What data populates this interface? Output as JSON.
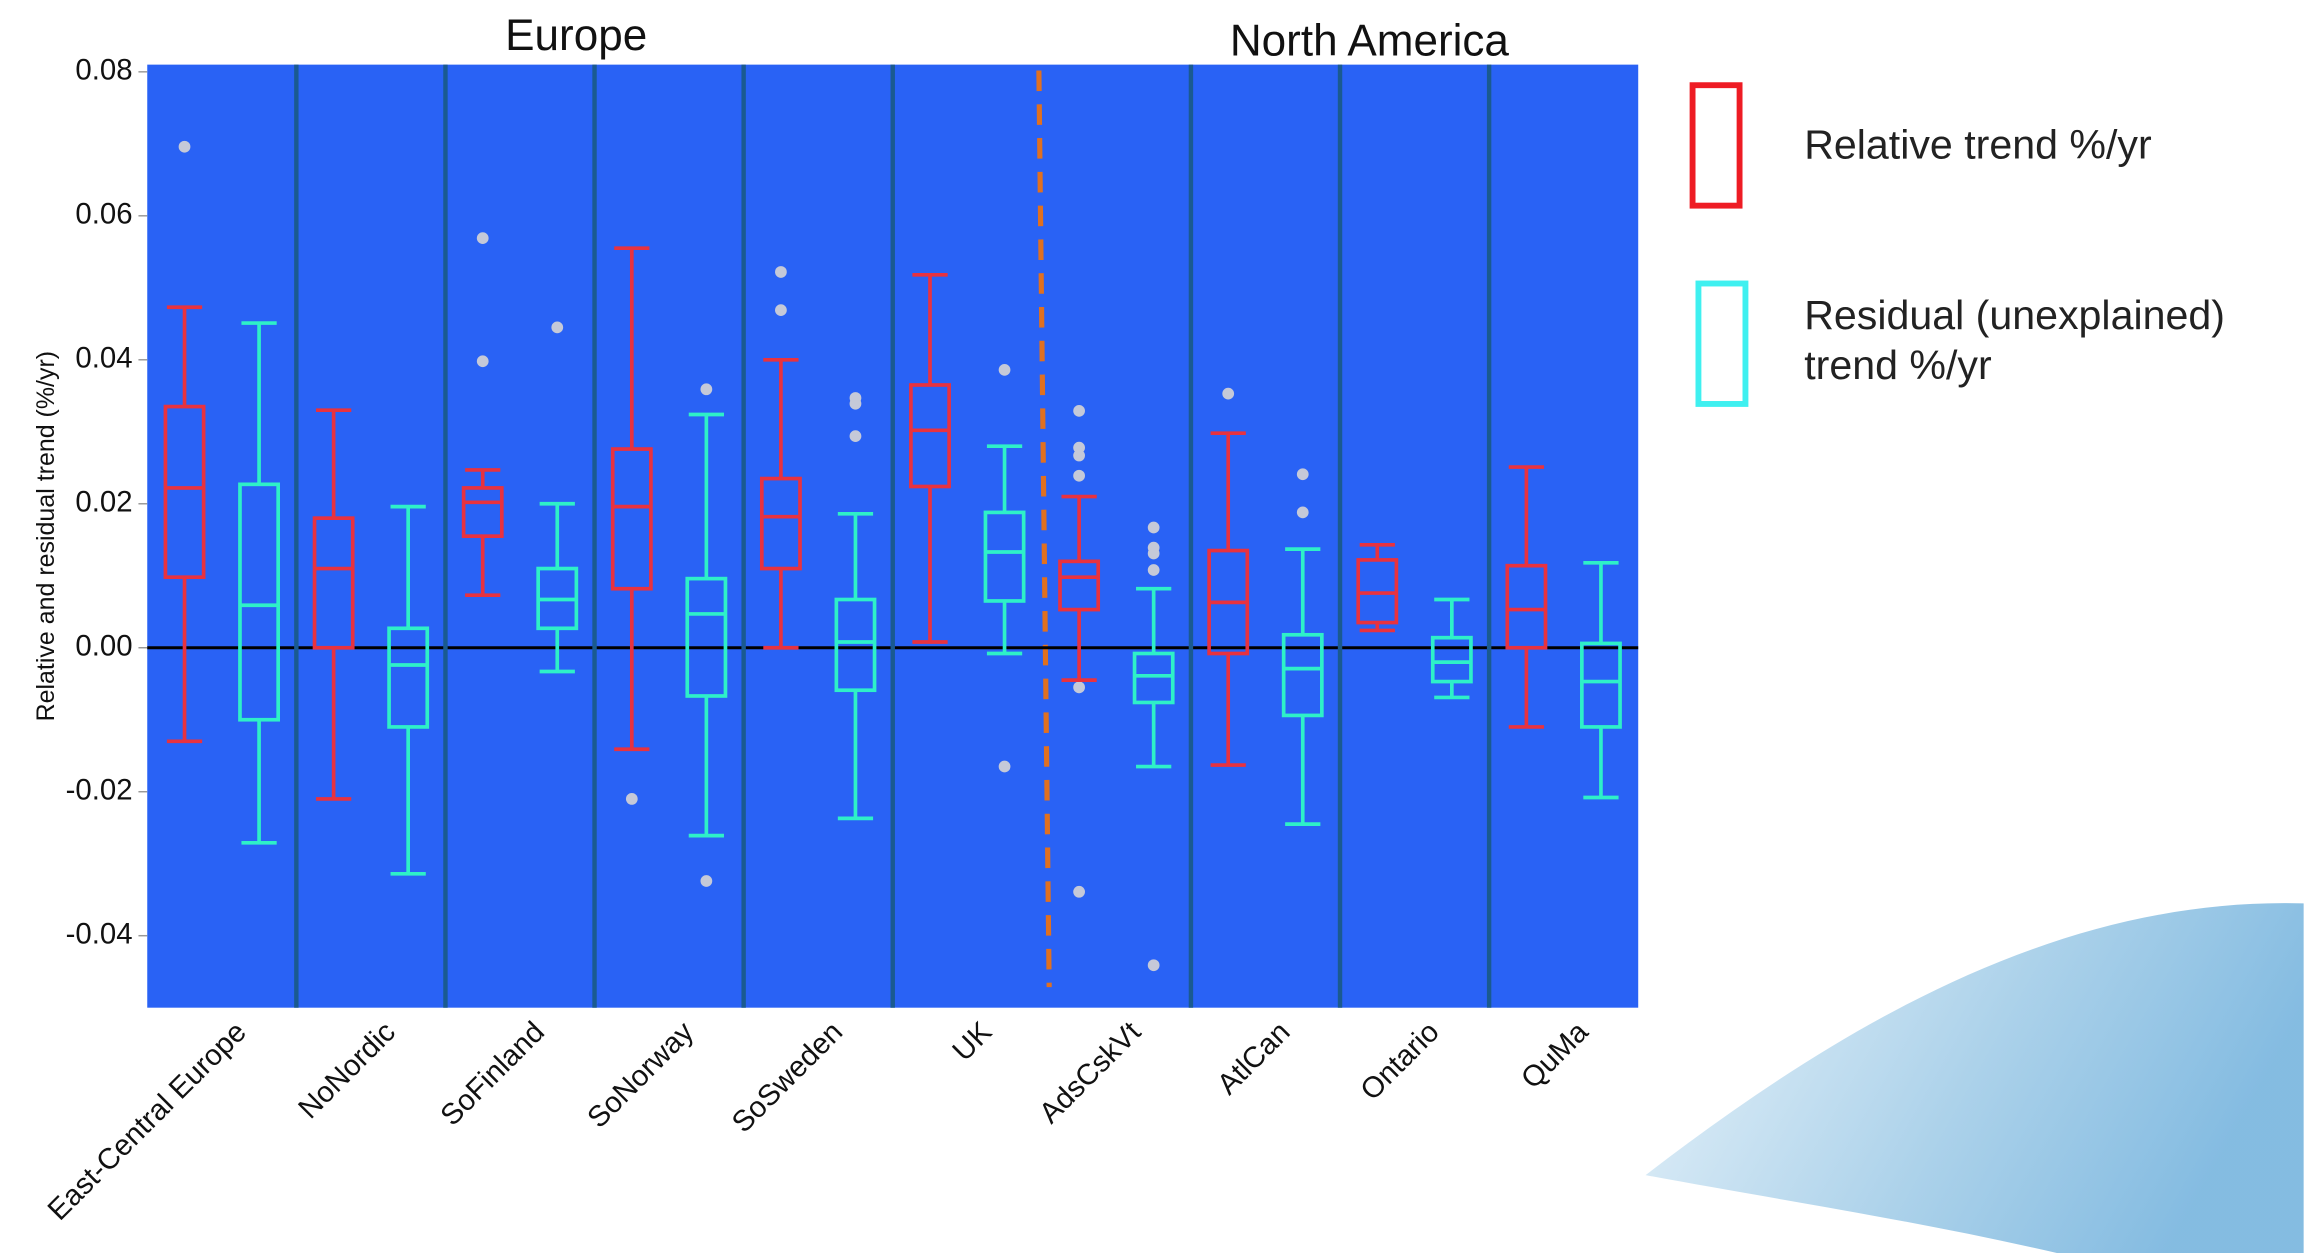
{
  "chart_data": {
    "type": "box",
    "group_labels": [
      "Europe",
      "North America"
    ],
    "y_label": "Relative and residual trend (%/yr)",
    "categories": [
      "East-Central Europe",
      "NoNordic",
      "SoFinland",
      "SoNorway",
      "SoSweden",
      "UK",
      "AdsCskVt",
      "AtlCan",
      "Ontario",
      "QuMa"
    ],
    "ylim": [
      -0.05,
      0.081
    ],
    "yticks": [
      {
        "value": -0.04,
        "label": "-0.04"
      },
      {
        "value": -0.02,
        "label": "-0.02"
      },
      {
        "value": 0,
        "label": "0.00"
      },
      {
        "value": 0.02,
        "label": "0.02"
      },
      {
        "value": 0.04,
        "label": "0.04"
      },
      {
        "value": 0.06,
        "label": "0.06"
      },
      {
        "value": 0.08,
        "label": "0.08"
      }
    ],
    "series": [
      {
        "name": "Relative trend %/yr",
        "color": "#e8323f",
        "boxes": [
          {
            "min": -0.013,
            "q1": 0.0098,
            "median": 0.0222,
            "q3": 0.0335,
            "max": 0.0473,
            "outliers": [
              0.0696
            ]
          },
          {
            "min": -0.021,
            "q1": 0.0,
            "median": 0.011,
            "q3": 0.018,
            "max": 0.033,
            "outliers": []
          },
          {
            "min": 0.0073,
            "q1": 0.0155,
            "median": 0.0202,
            "q3": 0.0222,
            "max": 0.0247,
            "outliers": [
              0.0569,
              0.0398
            ]
          },
          {
            "min": -0.0141,
            "q1": 0.0082,
            "median": 0.0196,
            "q3": 0.0276,
            "max": 0.0555,
            "outliers": [
              -0.021
            ]
          },
          {
            "min": 0.0,
            "q1": 0.011,
            "median": 0.0182,
            "q3": 0.0235,
            "max": 0.04,
            "outliers": [
              0.0522,
              0.0469
            ]
          },
          {
            "min": 0.0008,
            "q1": 0.0224,
            "median": 0.0302,
            "q3": 0.0365,
            "max": 0.0518,
            "outliers": []
          },
          {
            "min": -0.0045,
            "q1": 0.0053,
            "median": 0.0098,
            "q3": 0.012,
            "max": 0.021,
            "outliers": [
              0.0329,
              0.0278,
              0.0267,
              0.0239,
              -0.0055,
              -0.0339
            ]
          },
          {
            "min": -0.0163,
            "q1": -0.0008,
            "median": 0.0063,
            "q3": 0.0135,
            "max": 0.0298,
            "outliers": [
              0.0353
            ]
          },
          {
            "min": 0.0024,
            "q1": 0.0035,
            "median": 0.0076,
            "q3": 0.0122,
            "max": 0.0143,
            "outliers": []
          },
          {
            "min": -0.011,
            "q1": 0.0,
            "median": 0.0053,
            "q3": 0.0114,
            "max": 0.0251,
            "outliers": []
          }
        ]
      },
      {
        "name": "Residual (unexplained) trend %/yr",
        "color": "#2ef0c8",
        "boxes": [
          {
            "min": -0.0271,
            "q1": -0.01,
            "median": 0.0059,
            "q3": 0.0227,
            "max": 0.0451,
            "outliers": []
          },
          {
            "min": -0.0314,
            "q1": -0.011,
            "median": -0.0024,
            "q3": 0.0027,
            "max": 0.0196,
            "outliers": []
          },
          {
            "min": -0.0033,
            "q1": 0.0027,
            "median": 0.0067,
            "q3": 0.011,
            "max": 0.02,
            "outliers": [
              0.0445
            ]
          },
          {
            "min": -0.0261,
            "q1": -0.0067,
            "median": 0.0047,
            "q3": 0.0096,
            "max": 0.0324,
            "outliers": [
              0.0359,
              -0.0324
            ]
          },
          {
            "min": -0.0237,
            "q1": -0.0059,
            "median": 0.0008,
            "q3": 0.0067,
            "max": 0.0186,
            "outliers": [
              0.0347,
              0.0339,
              0.0294
            ]
          },
          {
            "min": -0.0008,
            "q1": 0.0065,
            "median": 0.0133,
            "q3": 0.0188,
            "max": 0.028,
            "outliers": [
              0.0386,
              -0.0165
            ]
          },
          {
            "min": -0.0165,
            "q1": -0.0076,
            "median": -0.0039,
            "q3": -0.0008,
            "max": 0.0082,
            "outliers": [
              0.0167,
              0.0139,
              0.0131,
              0.0108,
              -0.0441
            ]
          },
          {
            "min": -0.0245,
            "q1": -0.0094,
            "median": -0.0029,
            "q3": 0.0018,
            "max": 0.0137,
            "outliers": [
              0.0241,
              0.0188
            ]
          },
          {
            "min": -0.0069,
            "q1": -0.0047,
            "median": -0.002,
            "q3": 0.0014,
            "max": 0.0067,
            "outliers": []
          },
          {
            "min": -0.0208,
            "q1": -0.011,
            "median": -0.0047,
            "q3": 0.0006,
            "max": 0.0118,
            "outliers": []
          }
        ]
      }
    ]
  }
}
